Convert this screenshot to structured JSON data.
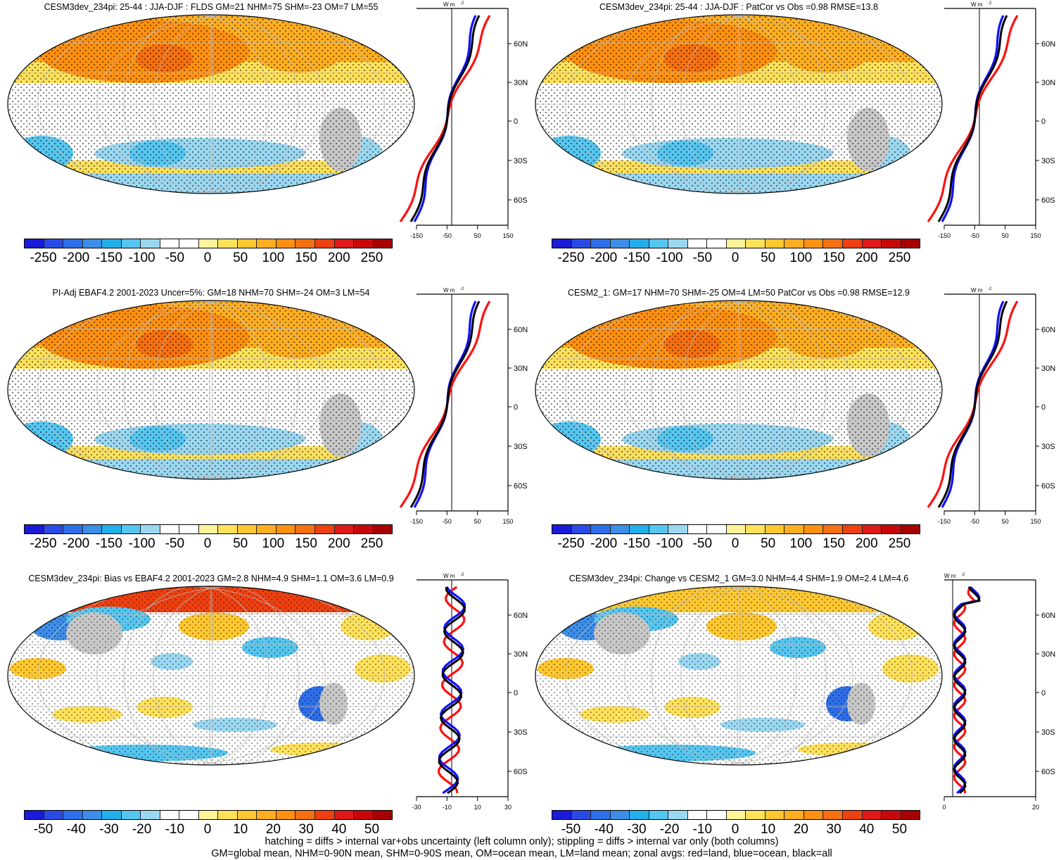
{
  "panels": [
    {
      "title": "CESM3dev_234pi: 25-44 : JJA-DJF : FLDS GM=21 NHM=75 SHM=-23 OM=7 LM=55",
      "colorbar_labels": [
        "-250",
        "-200",
        "-150",
        "-100",
        "-50",
        "0",
        "50",
        "100",
        "150",
        "200",
        "250"
      ],
      "zonal_units": "W m",
      "zonal_x_ticks": [
        "-150",
        "-50",
        "50",
        "150"
      ],
      "zonal_y_ticks": [
        "60N",
        "30N",
        "0",
        "30S",
        "60S"
      ]
    },
    {
      "title": "CESM3dev_234pi: 25-44 : JJA-DJF : PatCor vs Obs =0.98 RMSE=13.8",
      "colorbar_labels": [
        "-250",
        "-200",
        "-150",
        "-100",
        "-50",
        "0",
        "50",
        "100",
        "150",
        "200",
        "250"
      ],
      "zonal_units": "W m",
      "zonal_x_ticks": [
        "-150",
        "-50",
        "50",
        "150"
      ],
      "zonal_y_ticks": [
        "60N",
        "30N",
        "0",
        "30S",
        "60S"
      ]
    },
    {
      "title": "PI-Adj EBAF4.2 2001-2023 Uncer=5%: GM=18 NHM=70 SHM=-24 OM=3 LM=54",
      "colorbar_labels": [
        "-250",
        "-200",
        "-150",
        "-100",
        "-50",
        "0",
        "50",
        "100",
        "150",
        "200",
        "250"
      ],
      "zonal_units": "W m",
      "zonal_x_ticks": [
        "-150",
        "-50",
        "50",
        "150"
      ],
      "zonal_y_ticks": [
        "60N",
        "30N",
        "0",
        "30S",
        "60S"
      ]
    },
    {
      "title": "CESM2_1: GM=17 NHM=70 SHM=-25 OM=4 LM=50 PatCor vs Obs =0.98 RMSE=12.9",
      "colorbar_labels": [
        "-250",
        "-200",
        "-150",
        "-100",
        "-50",
        "0",
        "50",
        "100",
        "150",
        "200",
        "250"
      ],
      "zonal_units": "W m",
      "zonal_x_ticks": [
        "-150",
        "-50",
        "50",
        "150"
      ],
      "zonal_y_ticks": [
        "60N",
        "30N",
        "0",
        "30S",
        "60S"
      ]
    },
    {
      "title": "CESM3dev_234pi: Bias vs EBAF4.2 2001-2023 GM=2.8 NHM=4.9 SHM=1.1 OM=3.6 LM=0.9",
      "colorbar_labels": [
        "-50",
        "-40",
        "-30",
        "-20",
        "-10",
        "0",
        "10",
        "20",
        "30",
        "40",
        "50"
      ],
      "zonal_units": "W m",
      "zonal_x_ticks": [
        "-30",
        "-10",
        "10",
        "30"
      ],
      "zonal_y_ticks": [
        "60N",
        "30N",
        "0",
        "30S",
        "60S"
      ]
    },
    {
      "title": "CESM3dev_234pi: Change vs CESM2_1 GM=3.0 NHM=4.4 SHM=1.9 OM=2.4 LM=4.6",
      "colorbar_labels": [
        "-50",
        "-40",
        "-30",
        "-20",
        "-10",
        "0",
        "10",
        "20",
        "30",
        "40",
        "50"
      ],
      "zonal_units": "W m",
      "zonal_x_ticks": [
        "0",
        "20"
      ],
      "zonal_y_ticks": [
        "60N",
        "30N",
        "0",
        "30S",
        "60S"
      ]
    }
  ],
  "colorbar_colors": [
    "#1a1ad8",
    "#2a4ae8",
    "#2e6ee8",
    "#3c8ee8",
    "#22b0ea",
    "#55c6f0",
    "#9ad8f2",
    "#ffffff",
    "#ffffff",
    "#fff39a",
    "#ffe15a",
    "#ffc830",
    "#ffae20",
    "#ff9010",
    "#f57010",
    "#ee4010",
    "#e01818",
    "#c80808",
    "#a80000"
  ],
  "colors": {
    "land": "#c8c8c8",
    "ocean_white": "#ffffff",
    "red_line": "#ff1010",
    "blue_line": "#1010ff",
    "black_line": "#000000"
  },
  "footer": {
    "line1": "hatching = diffs > internal var+obs uncertainty (left column only); stippling = diffs > internal var only (both columns)",
    "line2": "GM=global mean, NHM=0-90N mean, SHM=0-90S mean, OM=ocean mean, LM=land mean; zonal avgs: red=land, blue=ocean, black=all"
  }
}
